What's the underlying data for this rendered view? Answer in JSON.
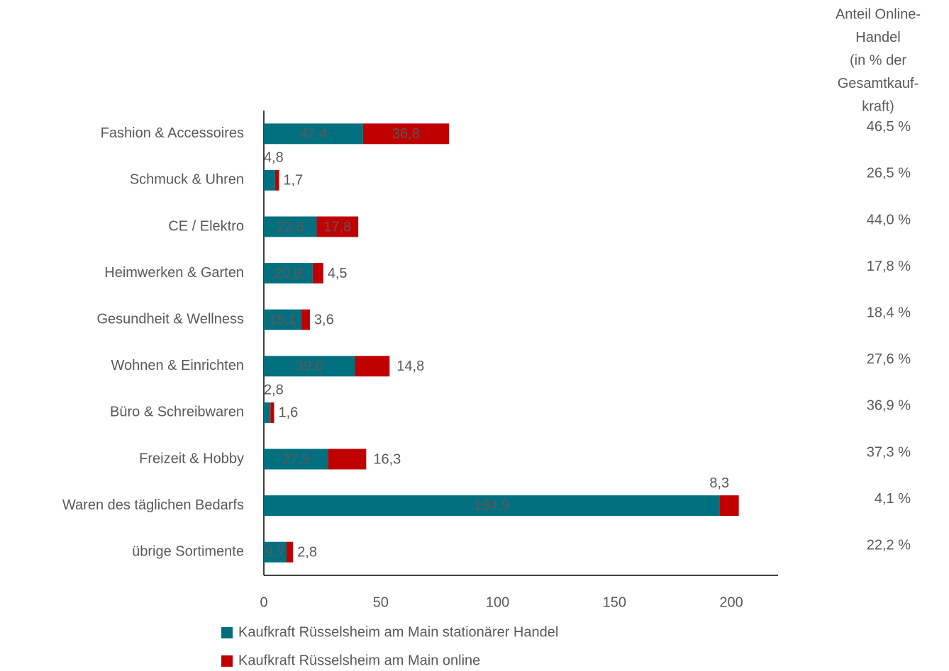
{
  "chart_data": {
    "type": "stacked_bar_horizontal",
    "categories": [
      "Fashion & Accessoires",
      "Schmuck & Uhren",
      "CE / Elektro",
      "Heimwerken & Garten",
      "Gesundheit & Wellness",
      "Wohnen & Einrichten",
      "Büro & Schreibwaren",
      "Freizeit & Hobby",
      "Waren des täglichen Bedarfs",
      "übrige Sortimente"
    ],
    "series": [
      {
        "name": "Kaufkraft Rüsselsheim am Main stationärer Handel",
        "color": "#00707f",
        "values": [
          42.4,
          4.8,
          22.6,
          20.9,
          16.1,
          39.0,
          2.8,
          27.5,
          194.9,
          9.7
        ],
        "value_labels": [
          "42,4",
          "4,8",
          "22,6",
          "20,9",
          "16,1",
          "39,0",
          "2,8",
          "27,5",
          "194,9",
          "9,7"
        ]
      },
      {
        "name": "Kaufkraft Rüsselsheim am Main online",
        "color": "#c00000",
        "values": [
          36.8,
          1.7,
          17.8,
          4.5,
          3.6,
          14.8,
          1.6,
          16.3,
          8.3,
          2.8
        ],
        "value_labels": [
          "36,8",
          "1,7",
          "17,8",
          "4,5",
          "3,6",
          "14,8",
          "1,6",
          "16,3",
          "8,3",
          "2,8"
        ]
      }
    ],
    "xlim": [
      0,
      220
    ],
    "xticks": [
      0,
      50,
      100,
      150,
      200
    ],
    "online_share": {
      "header_lines": [
        "Anteil Online-",
        "Handel",
        "(in % der",
        "Gesamtkauf-",
        "kraft)"
      ],
      "labels": [
        "46,5 %",
        "26,5 %",
        "44,0 %",
        "17,8 %",
        "18,4 %",
        "27,6 %",
        "36,9 %",
        "37,3 %",
        "4,1 %",
        "22,2 %"
      ]
    }
  }
}
